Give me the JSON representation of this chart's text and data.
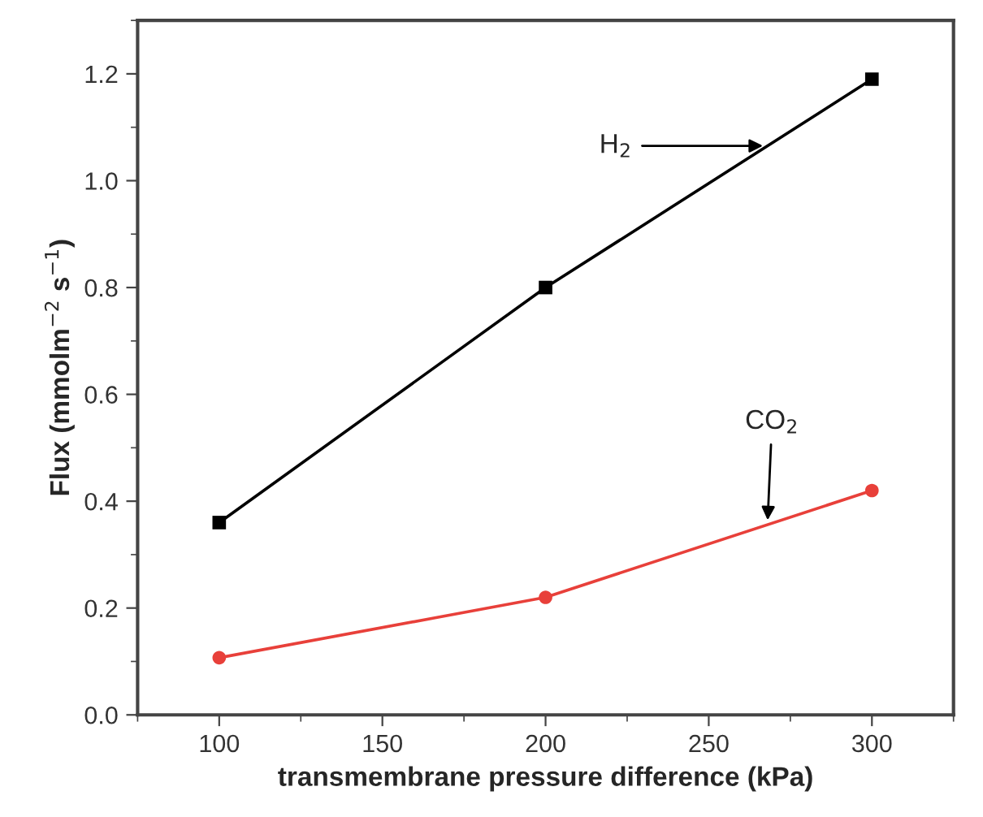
{
  "chart_data": {
    "type": "line",
    "xlabel": "transmembrane pressure difference (kPa)",
    "ylabel": "Flux (mmolm$^{−2}$ s$^{−1}$)",
    "x": [
      100,
      200,
      300
    ],
    "series": [
      {
        "name": "H$_{2}$",
        "color": "#000000",
        "values": [
          0.36,
          0.8,
          1.19
        ],
        "marker": "square"
      },
      {
        "name": "CO$_{2}$",
        "color": "#e8403a",
        "values": [
          0.107,
          0.22,
          0.42
        ],
        "marker": "circle"
      }
    ],
    "xlim": [
      75,
      325
    ],
    "xticks": [
      100,
      150,
      200,
      250,
      300
    ],
    "ylim": [
      0,
      1.3
    ],
    "yticks": [
      {
        "value": 0,
        "label": "0.0"
      },
      0.2,
      0.4,
      0.6,
      0.8,
      {
        "value": 1,
        "label": "1.0"
      },
      1.2
    ],
    "grid": false
  }
}
